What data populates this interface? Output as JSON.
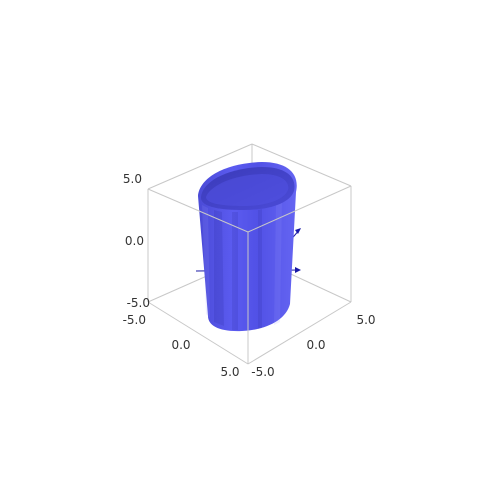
{
  "chart_data": {
    "type": "surface3d",
    "surface": "elliptic cylinder",
    "surface_color": "#5555ee",
    "axis_color": "#1a1aa6",
    "box_color": "#c8c8c8",
    "xlim": [
      -5.0,
      5.0
    ],
    "ylim": [
      -5.0,
      5.0
    ],
    "zlim": [
      -5.0,
      5.0
    ],
    "ticks": {
      "z": [
        "5.0",
        "0.0",
        "-5.0"
      ],
      "x": [
        "-5.0",
        "0.0",
        "5.0"
      ],
      "y": [
        "-5.0",
        "0.0",
        "5.0"
      ]
    },
    "grid": false,
    "legend": "none"
  }
}
